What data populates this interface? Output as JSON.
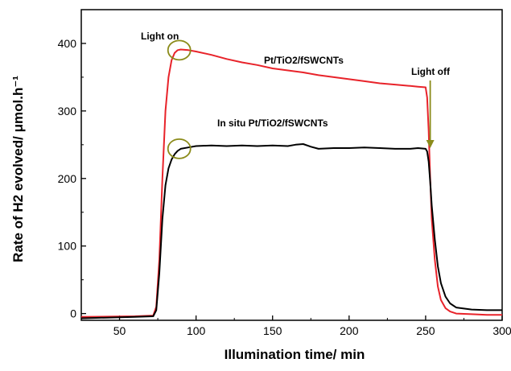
{
  "chart_data": {
    "type": "line",
    "title": "",
    "xlabel": "Illumination time/ min",
    "ylabel": "Rate of H2 evolved/ μmol.h⁻¹",
    "xlim": [
      25,
      300
    ],
    "ylim": [
      -10,
      450
    ],
    "x_ticks": [
      50,
      100,
      150,
      200,
      250,
      300
    ],
    "y_ticks": [
      0,
      100,
      200,
      300,
      400
    ],
    "grid": false,
    "legend": "none",
    "series": [
      {
        "name": "Pt/TiO2/fSWCNTs",
        "color": "#e8232a",
        "x": [
          25,
          60,
          72,
          74,
          76,
          78,
          80,
          82,
          84,
          86,
          88,
          90,
          95,
          100,
          110,
          120,
          130,
          140,
          150,
          160,
          170,
          180,
          190,
          200,
          210,
          220,
          230,
          240,
          245,
          250,
          251,
          252,
          253,
          254,
          256,
          258,
          260,
          263,
          266,
          270,
          280,
          290,
          300
        ],
        "y": [
          -5,
          -4,
          -3,
          10,
          80,
          200,
          300,
          350,
          375,
          386,
          390,
          391,
          390,
          388,
          383,
          377,
          372,
          368,
          363,
          360,
          357,
          353,
          350,
          347,
          344,
          341,
          339,
          337,
          336,
          335,
          320,
          270,
          200,
          140,
          80,
          40,
          20,
          8,
          3,
          0,
          -1,
          -2,
          -2
        ]
      },
      {
        "name": "In situ Pt/TiO2/fSWCNTs",
        "color": "#000000",
        "x": [
          25,
          60,
          72,
          74,
          76,
          78,
          80,
          82,
          84,
          86,
          88,
          90,
          95,
          100,
          110,
          120,
          130,
          140,
          150,
          160,
          165,
          170,
          175,
          180,
          190,
          200,
          210,
          220,
          230,
          240,
          245,
          250,
          251,
          252,
          253,
          254,
          256,
          258,
          260,
          263,
          266,
          270,
          280,
          290,
          300
        ],
        "y": [
          -7,
          -5,
          -4,
          5,
          60,
          140,
          190,
          215,
          228,
          236,
          241,
          244,
          246,
          248,
          249,
          248,
          249,
          248,
          249,
          248,
          250,
          251,
          247,
          244,
          245,
          245,
          246,
          245,
          244,
          244,
          245,
          244,
          240,
          225,
          195,
          160,
          110,
          70,
          45,
          25,
          15,
          9,
          6,
          5,
          5
        ]
      }
    ],
    "annotations": {
      "light_on": "Light on",
      "light_off": "Light off",
      "series1_label": "Pt/TiO2/fSWCNTs",
      "series2_label": "In situ Pt/TiO2/fSWCNTs"
    },
    "annotation_color": "#8b8b1a"
  }
}
